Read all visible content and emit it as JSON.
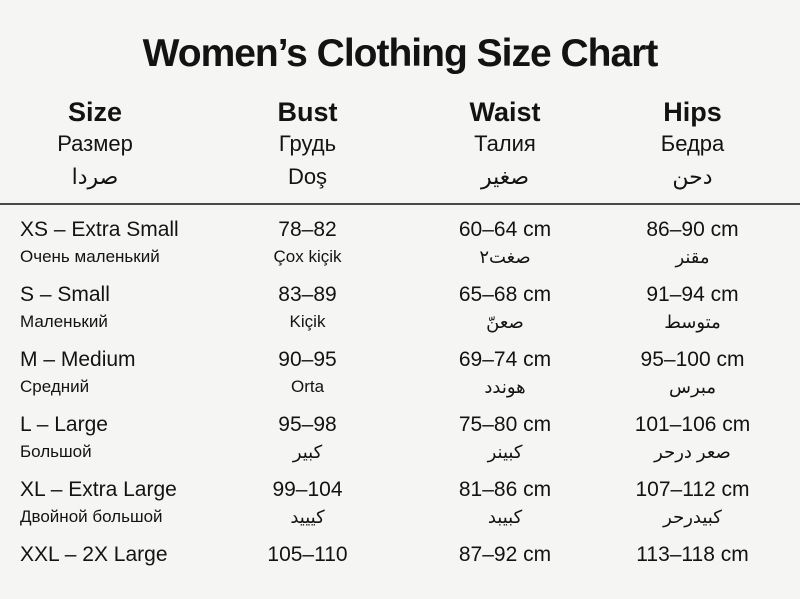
{
  "title": "Women’s Clothing Size Chart",
  "table": {
    "columns": [
      {
        "line1": "Size",
        "line2": "Размер",
        "line3": "صردا"
      },
      {
        "line1": "Bust",
        "line2": "Грудь",
        "line3": "Doş"
      },
      {
        "line1": "Waist",
        "line2": "Талия",
        "line3": "صغير"
      },
      {
        "line1": "Hips",
        "line2": "Бедра",
        "line3": "دحن"
      }
    ],
    "rows": [
      {
        "size": "XS – Extra Small",
        "size_sub": "Очень маленький",
        "bust": "78–82",
        "bust_sub": "Çox kiçik",
        "waist": "60–64 cm",
        "waist_sub": "صغت٢",
        "hips": "86–90 cm",
        "hips_sub": "مقنر"
      },
      {
        "size": "S – Small",
        "size_sub": "Маленький",
        "bust": "83–89",
        "bust_sub": "Kiçik",
        "waist": "65–68 cm",
        "waist_sub": "صعنّ",
        "hips": "91–94 cm",
        "hips_sub": "متوسط"
      },
      {
        "size": "M – Medium",
        "size_sub": "Средний",
        "bust": "90–95",
        "bust_sub": "Orta",
        "waist": "69–74 cm",
        "waist_sub": "هوندد",
        "hips": "95–100 cm",
        "hips_sub": "مبرس"
      },
      {
        "size": "L – Large",
        "size_sub": "Большой",
        "bust": "95–98",
        "bust_sub": "كبير",
        "waist": "75–80 cm",
        "waist_sub": "كبينر",
        "hips": "101–106 cm",
        "hips_sub": "صعر درحر"
      },
      {
        "size": "XL – Extra Large",
        "size_sub": "Двойной большой",
        "bust": "99–104",
        "bust_sub": "كيييد",
        "waist": "81–86 cm",
        "waist_sub": "كبيبد",
        "hips": "107–112 cm",
        "hips_sub": "كبيدرحر"
      },
      {
        "size": "XXL – 2X Large",
        "size_sub": "",
        "bust": "105–110",
        "bust_sub": "",
        "waist": "87–92 cm",
        "waist_sub": "",
        "hips": "113–118 cm",
        "hips_sub": ""
      }
    ]
  }
}
